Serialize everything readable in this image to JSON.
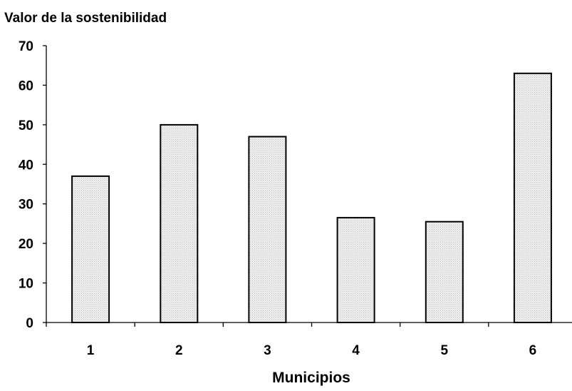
{
  "chart_data": {
    "type": "bar",
    "title": "",
    "ylabel": "Valor de la sostenibilidad",
    "xlabel": "Municipios",
    "categories": [
      "1",
      "2",
      "3",
      "4",
      "5",
      "6"
    ],
    "values": [
      37,
      50,
      47,
      26.5,
      25.5,
      63
    ],
    "ylim": [
      0,
      70
    ],
    "yticks": [
      0,
      10,
      20,
      30,
      40,
      50,
      60,
      70
    ],
    "grid": false,
    "bar_fill": "#e6e6e6",
    "bar_stroke": "#000000"
  }
}
